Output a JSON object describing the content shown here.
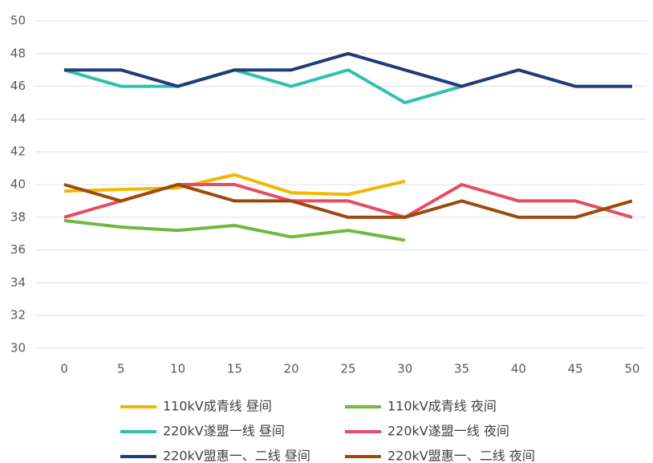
{
  "chart_data": {
    "type": "line",
    "x": [
      0,
      5,
      10,
      15,
      20,
      25,
      30,
      35,
      40,
      45,
      50
    ],
    "xlim": [
      0,
      50
    ],
    "xticks": [
      0,
      5,
      10,
      15,
      20,
      25,
      30,
      35,
      40,
      45,
      50
    ],
    "ylim": [
      30,
      50
    ],
    "yticks": [
      30,
      32,
      34,
      36,
      38,
      40,
      42,
      44,
      46,
      48,
      50
    ],
    "grid": true,
    "legend": "bottom",
    "series": [
      {
        "name": "110kV成青线 昼间",
        "color": "#f2b800",
        "values": [
          39.6,
          39.7,
          39.8,
          40.6,
          39.5,
          39.4,
          40.2,
          null,
          null,
          null,
          null
        ]
      },
      {
        "name": "110kV成青线 夜间",
        "color": "#70b83e",
        "values": [
          37.8,
          37.4,
          37.2,
          37.5,
          36.8,
          37.2,
          36.6,
          null,
          null,
          null,
          null
        ]
      },
      {
        "name": "220kV遂盟一线 昼间",
        "color": "#30c0b0",
        "values": [
          47,
          46,
          46,
          47,
          46,
          47,
          45,
          46,
          null,
          null,
          null
        ]
      },
      {
        "name": "220kV遂盟一线 夜间",
        "color": "#e64c63",
        "values": [
          38,
          39,
          40,
          40,
          39,
          39,
          38,
          40,
          39,
          39,
          38
        ]
      },
      {
        "name": "220kV盟惠一、二线 昼间",
        "color": "#1f3c7a",
        "values": [
          47,
          47,
          46,
          47,
          47,
          48,
          47,
          46,
          47,
          46,
          46
        ]
      },
      {
        "name": "220kV盟惠一、二线 夜间",
        "color": "#9c4a0c",
        "values": [
          40,
          39,
          40,
          39,
          39,
          38,
          38,
          39,
          38,
          38,
          39
        ]
      }
    ]
  }
}
